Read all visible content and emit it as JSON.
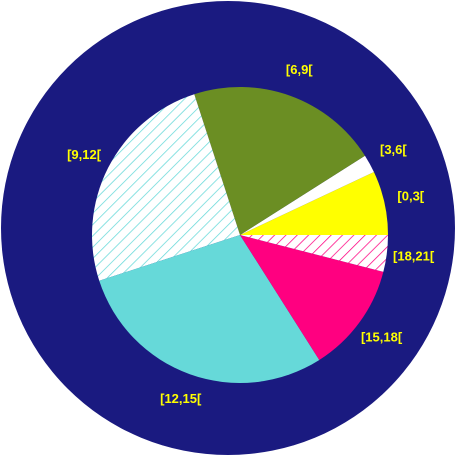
{
  "chart_data": {
    "type": "pie",
    "categories": [
      "[0,3[",
      "[3,6[",
      "[6,9[",
      "[9,12[",
      "[12,15[",
      "[15,18[",
      "[18,21["
    ],
    "values": [
      7,
      2,
      21,
      25,
      29,
      12,
      4
    ],
    "colors": [
      "#ffff00",
      "#ffffff",
      "#6b8e23",
      "#66d9d9",
      "#66d9d9",
      "#ff0080",
      "#ff0080"
    ],
    "hatched": [
      false,
      false,
      false,
      true,
      false,
      false,
      true
    ]
  }
}
